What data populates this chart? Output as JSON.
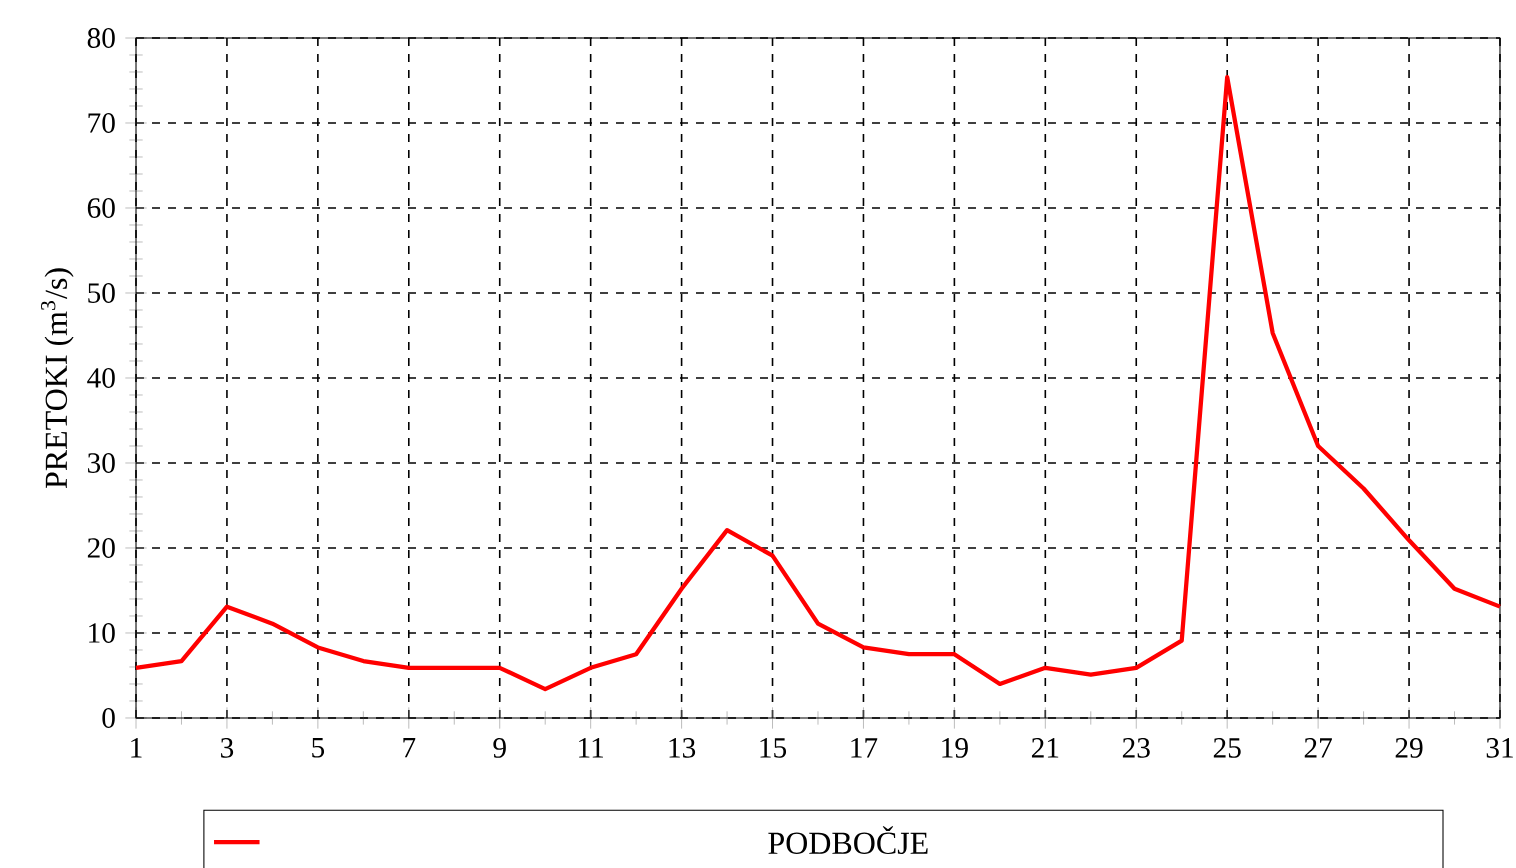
{
  "chart_data": {
    "type": "line",
    "ylabel": "PRETOKI (m$^{3}$/s)",
    "x": [
      1,
      2,
      3,
      4,
      5,
      6,
      7,
      8,
      9,
      10,
      11,
      12,
      13,
      14,
      15,
      16,
      17,
      18,
      19,
      20,
      21,
      22,
      23,
      24,
      25,
      26,
      27,
      28,
      29,
      30,
      31
    ],
    "series": [
      {
        "name": "PODBOČJE",
        "color": "#ff0000",
        "values": [
          5.9,
          6.7,
          13.1,
          11.1,
          8.3,
          6.7,
          5.9,
          5.9,
          5.9,
          3.4,
          5.9,
          7.5,
          15.2,
          22.1,
          19.1,
          11.1,
          8.3,
          7.5,
          7.5,
          4.0,
          5.9,
          5.1,
          5.9,
          9.1,
          75.4,
          45.3,
          32.0,
          27.0,
          20.9,
          15.2,
          13.1
        ]
      }
    ],
    "xlim": [
      1,
      31
    ],
    "xticks": [
      1,
      {
        "value": 2,
        "label": null
      },
      3,
      {
        "value": 4,
        "label": null
      },
      5,
      {
        "value": 6,
        "label": null
      },
      7,
      {
        "value": 8,
        "label": null
      },
      9,
      {
        "value": 10,
        "label": null
      },
      11,
      {
        "value": 12,
        "label": null
      },
      13,
      {
        "value": 14,
        "label": null
      },
      15,
      {
        "value": 16,
        "label": null
      },
      17,
      {
        "value": 18,
        "label": null
      },
      19,
      {
        "value": 20,
        "label": null
      },
      21,
      {
        "value": 22,
        "label": null
      },
      23,
      {
        "value": 24,
        "label": null
      },
      25,
      {
        "value": 26,
        "label": null
      },
      27,
      {
        "value": 28,
        "label": null
      },
      29,
      {
        "value": 30,
        "label": null
      },
      31
    ],
    "ylim": [
      0,
      80
    ],
    "yticks": [
      0,
      10,
      20,
      30,
      40,
      50,
      60,
      70,
      80
    ],
    "grid": true,
    "legend": "bottom",
    "line_style": "solid",
    "marker": "none"
  }
}
